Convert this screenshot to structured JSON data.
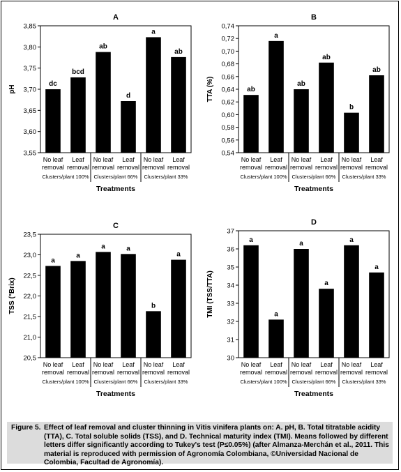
{
  "chart_data": [
    {
      "type": "bar",
      "title": "A",
      "ylabel": "pH",
      "xlabel": "Treatments",
      "ylim": [
        3.55,
        3.85
      ],
      "yticks": [
        "3,55",
        "3,60",
        "3,65",
        "3,70",
        "3,75",
        "3,80",
        "3,85"
      ],
      "categories": [
        "No leaf removal",
        "Leaf removal",
        "No leaf removal",
        "Leaf removal",
        "No leaf removal",
        "Leaf removal"
      ],
      "groups": [
        "Clusters/plant 100%",
        "Clusters/plant 66%",
        "Clusters/plant 33%"
      ],
      "values": [
        3.7,
        3.728,
        3.788,
        3.672,
        3.823,
        3.776
      ],
      "letters": [
        "dc",
        "bcd",
        "ab",
        "d",
        "a",
        "ab"
      ]
    },
    {
      "type": "bar",
      "title": "B",
      "ylabel": "TTA (%)",
      "xlabel": "Treatments",
      "ylim": [
        0.54,
        0.74
      ],
      "yticks": [
        "0,54",
        "0,56",
        "0,58",
        "0,60",
        "0,62",
        "0,64",
        "0,66",
        "0,68",
        "0,70",
        "0,72",
        "0,74"
      ],
      "categories": [
        "No leaf removal",
        "Leaf removal",
        "No leaf removal",
        "Leaf removal",
        "No leaf removal",
        "Leaf removal"
      ],
      "groups": [
        "Clusters/plant 100%",
        "Clusters/plant 66%",
        "Clusters/plant 33%"
      ],
      "values": [
        0.631,
        0.716,
        0.64,
        0.682,
        0.603,
        0.662
      ],
      "letters": [
        "ab",
        "a",
        "ab",
        "ab",
        "b",
        "ab"
      ]
    },
    {
      "type": "bar",
      "title": "C",
      "ylabel": "TSS (°Brix)",
      "xlabel": "Treatments",
      "ylim": [
        20.5,
        23.5
      ],
      "yticks": [
        "20,5",
        "21,0",
        "21,5",
        "22,0",
        "22,5",
        "23,0",
        "23,5"
      ],
      "categories": [
        "No leaf removal",
        "Leaf removal",
        "No leaf removal",
        "Leaf removal",
        "No leaf removal",
        "Leaf removal"
      ],
      "groups": [
        "Clusters/plant 100%",
        "Clusters/plant 66%",
        "Clusters/plant 33%"
      ],
      "values": [
        22.73,
        22.85,
        23.07,
        23.02,
        21.63,
        22.88
      ],
      "letters": [
        "a",
        "a",
        "a",
        "a",
        "b",
        "a"
      ]
    },
    {
      "type": "bar",
      "title": "D",
      "ylabel": "TMI (TSS/TTA)",
      "xlabel": "Treatments",
      "ylim": [
        30,
        37
      ],
      "yticks": [
        "30",
        "31",
        "32",
        "33",
        "34",
        "35",
        "36",
        "37"
      ],
      "categories": [
        "No leaf removal",
        "Leaf removal",
        "No leaf removal",
        "Leaf removal",
        "No leaf removal",
        "Leaf removal"
      ],
      "groups": [
        "Clusters/plant 100%",
        "Clusters/plant 66%",
        "Clusters/plant 33%"
      ],
      "values": [
        36.2,
        32.1,
        36.0,
        33.8,
        36.2,
        34.7
      ],
      "letters": [
        "a",
        "a",
        "a",
        "a",
        "a",
        "a"
      ]
    }
  ],
  "caption": {
    "label": "Figure 5.",
    "text": "Effect of leaf removal and cluster thinning in Vitis vinifera plants on: A. pH, B. Total titratable acidity (TTA), C. Total soluble solids (TSS), and D. Technical maturity index (TMI). Means followed by different letters differ significantly according to Tukey's test (P≤0.05%) (after Almanza-Merchán et al., 2011. This material is reproduced with permission of Agronomía Colombiana, ©Universidad Nacional de Colombia, Facultad de Agronomía)."
  }
}
